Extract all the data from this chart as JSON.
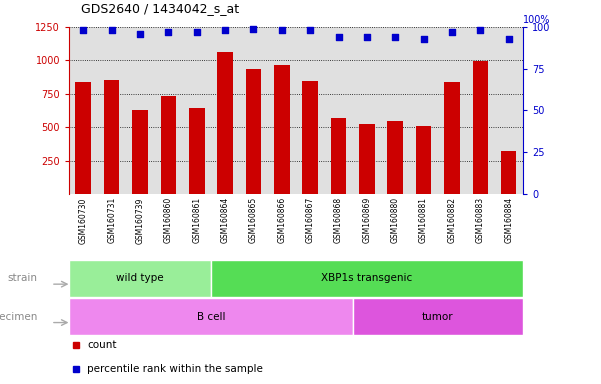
{
  "title": "GDS2640 / 1434042_s_at",
  "samples": [
    "GSM160730",
    "GSM160731",
    "GSM160739",
    "GSM160860",
    "GSM160861",
    "GSM160864",
    "GSM160865",
    "GSM160866",
    "GSM160867",
    "GSM160868",
    "GSM160869",
    "GSM160880",
    "GSM160881",
    "GSM160882",
    "GSM160883",
    "GSM160884"
  ],
  "counts": [
    840,
    855,
    630,
    730,
    645,
    1060,
    935,
    965,
    845,
    565,
    520,
    545,
    510,
    840,
    995,
    320
  ],
  "percentiles": [
    98,
    98,
    96,
    97,
    97,
    98,
    99,
    98,
    98,
    94,
    94,
    94,
    93,
    97,
    98,
    93
  ],
  "ylim_left": [
    0,
    1250
  ],
  "ylim_right": [
    0,
    100
  ],
  "yticks_left": [
    250,
    500,
    750,
    1000,
    1250
  ],
  "yticks_right": [
    0,
    25,
    50,
    75,
    100
  ],
  "bar_color": "#cc0000",
  "dot_color": "#0000cc",
  "bar_area_color": "#e0e0e0",
  "strain_groups": [
    {
      "label": "wild type",
      "start": 0,
      "end": 5,
      "color": "#99ee99"
    },
    {
      "label": "XBP1s transgenic",
      "start": 5,
      "end": 16,
      "color": "#55dd55"
    }
  ],
  "specimen_groups": [
    {
      "label": "B cell",
      "start": 0,
      "end": 10,
      "color": "#ee88ee"
    },
    {
      "label": "tumor",
      "start": 10,
      "end": 16,
      "color": "#dd55dd"
    }
  ],
  "strain_label": "strain",
  "specimen_label": "specimen",
  "legend_count_label": "count",
  "legend_pct_label": "percentile rank within the sample",
  "right_axis_top_label": "100%"
}
